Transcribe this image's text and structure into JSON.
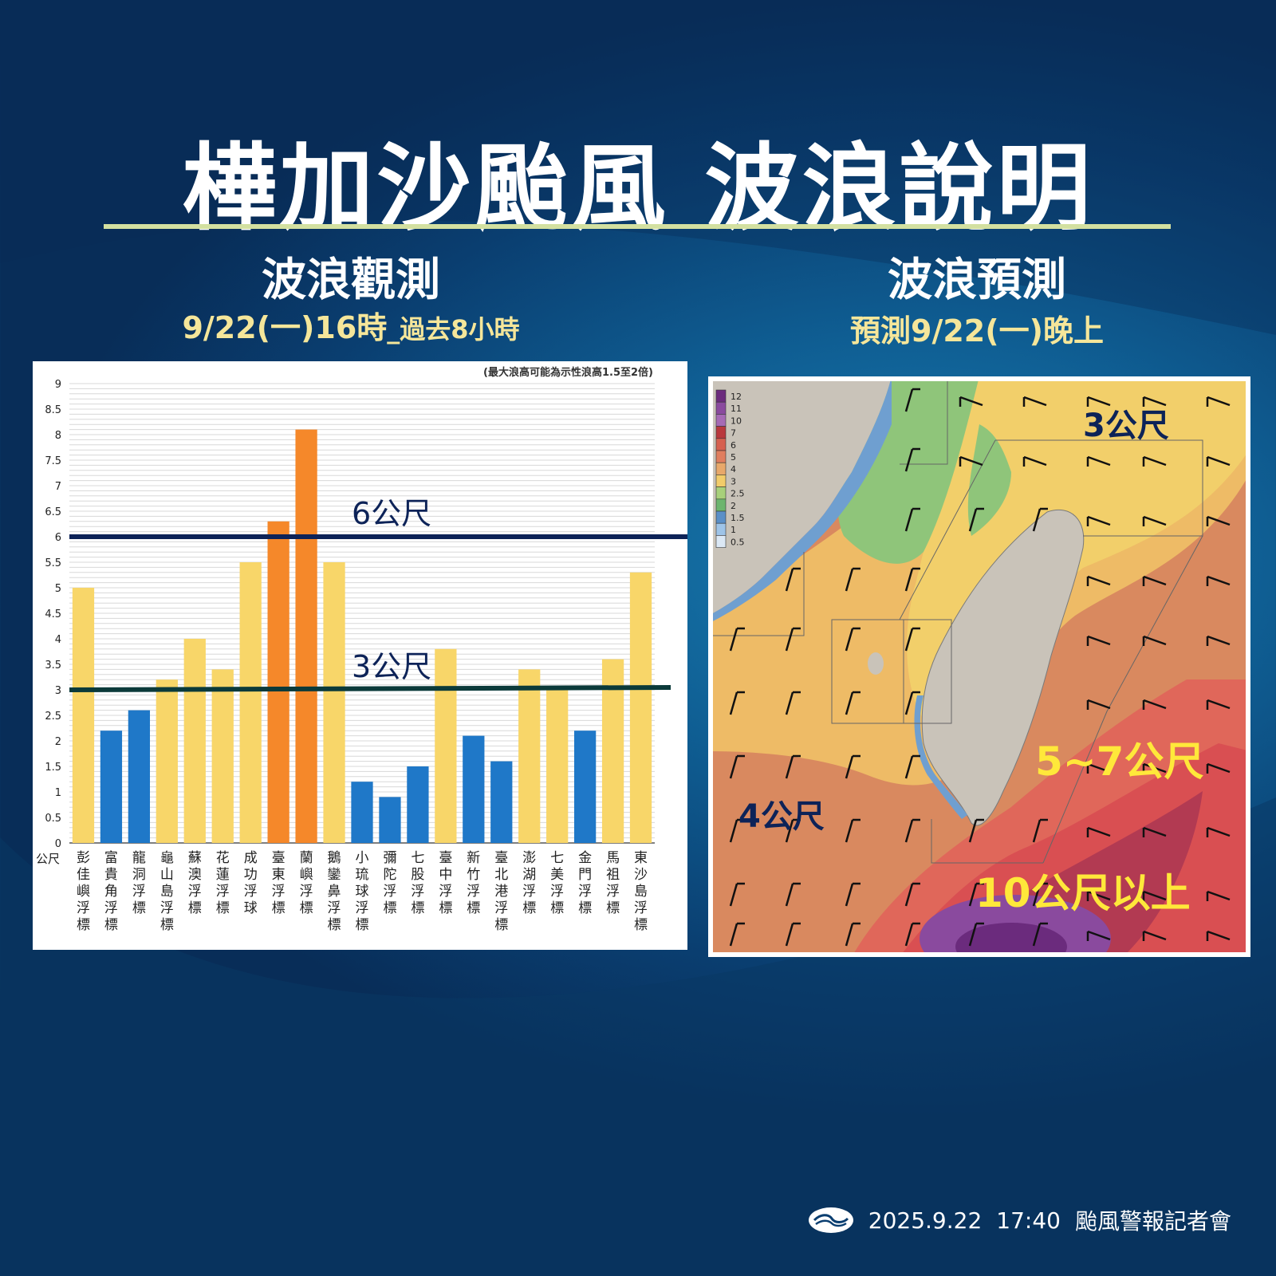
{
  "header": {
    "title": "樺加沙颱風 波浪說明"
  },
  "left_section": {
    "title": "波浪觀測",
    "subtitle_main": "9/22(一)16時",
    "subtitle_small": "_過去8小時"
  },
  "right_section": {
    "title": "波浪預測",
    "subtitle": "預測9/22(一)晚上"
  },
  "chart_data": {
    "type": "bar",
    "title": "",
    "note": "(最大浪高可能為示性浪高1.5至2倍)",
    "ylabel": "公尺",
    "xlabel": "",
    "ylim": [
      0,
      9
    ],
    "yticks": [
      "0",
      "0.5",
      "1",
      "1.5",
      "2",
      "2.5",
      "3",
      "3.5",
      "4",
      "4.5",
      "5",
      "5.5",
      "6",
      "6.5",
      "7",
      "7.5",
      "8",
      "8.5",
      "9"
    ],
    "categories": [
      "彭佳嶼浮標",
      "富貴角浮標",
      "龍洞浮標",
      "龜山島浮標",
      "蘇澳浮標",
      "花蓮浮標",
      "成功浮球",
      "臺東浮標",
      "蘭嶼浮標",
      "鵝鑾鼻浮標",
      "小琉球浮標",
      "彌陀浮標",
      "七股浮標",
      "臺中浮標",
      "新竹浮標",
      "臺北港浮標",
      "澎湖浮標",
      "七美浮標",
      "金門浮標",
      "馬祖浮標",
      "東沙島浮標"
    ],
    "values": [
      5.0,
      2.2,
      2.6,
      3.2,
      4.0,
      3.4,
      5.5,
      6.3,
      8.1,
      5.5,
      1.2,
      0.9,
      1.5,
      3.8,
      2.1,
      1.6,
      3.4,
      3.0,
      2.2,
      3.6,
      5.3
    ],
    "colors": {
      "low": "#1f78c8",
      "mid": "#f8d669",
      "high": "#f5882a"
    },
    "reference_lines": [
      {
        "value": 6,
        "label": "6公尺",
        "color": "#0d2358"
      },
      {
        "value": 3,
        "label": "3公尺",
        "color": "#0b3a3a"
      }
    ],
    "grid": true
  },
  "map": {
    "legend": [
      "12",
      "11",
      "10",
      "7",
      "6",
      "5",
      "4",
      "3",
      "2.5",
      "2",
      "1.5",
      "1",
      "0.5"
    ],
    "legend_colors": [
      "#6b2b7d",
      "#8a4a9e",
      "#a66ab5",
      "#b9383d",
      "#d6604f",
      "#e07e5e",
      "#e8a86a",
      "#f2cc6a",
      "#a8d07a",
      "#6db56e",
      "#5a8fc7",
      "#9ec4e8",
      "#dbe8f5"
    ],
    "labels": [
      {
        "text": "3公尺",
        "color": "#0d2358"
      },
      {
        "text": "4公尺",
        "color": "#0d2358"
      },
      {
        "text": "5~7公尺",
        "color": "#ffe83a"
      },
      {
        "text": "10公尺以上",
        "color": "#ffe83a"
      }
    ]
  },
  "footer": {
    "date": "2025.9.22",
    "time": "17:40",
    "event": "颱風警報記者會"
  }
}
